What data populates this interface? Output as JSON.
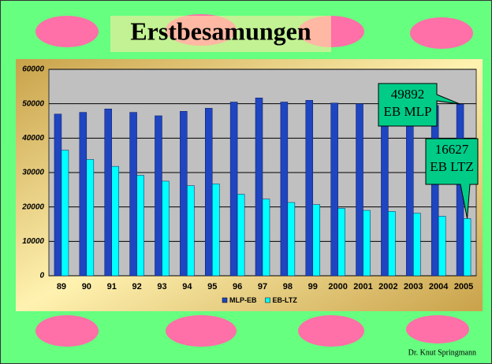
{
  "chart_data": {
    "type": "bar",
    "title": "Erstbesamungen",
    "categories": [
      "89",
      "90",
      "91",
      "92",
      "93",
      "94",
      "95",
      "96",
      "97",
      "98",
      "99",
      "2000",
      "2001",
      "2002",
      "2003",
      "2004",
      "2005"
    ],
    "series": [
      {
        "name": "MLP-EB",
        "color": "#1f45c0",
        "values": [
          47000,
          47500,
          48500,
          47500,
          46500,
          47800,
          48700,
          50500,
          51700,
          50500,
          51000,
          50200,
          50000,
          49700,
          49600,
          49500,
          49892
        ]
      },
      {
        "name": "EB-LTZ",
        "color": "#00ffff",
        "values": [
          36500,
          33800,
          31800,
          29200,
          27500,
          26200,
          26700,
          23700,
          22300,
          21300,
          20700,
          19600,
          19000,
          18700,
          18200,
          17300,
          16627
        ]
      }
    ],
    "ylim": [
      0,
      60000
    ],
    "yticks": [
      0,
      10000,
      20000,
      30000,
      40000,
      50000,
      60000
    ],
    "grid": true,
    "annotations": [
      {
        "lines": [
          "49892",
          "EB MLP"
        ]
      },
      {
        "lines": [
          "16627",
          "EB LTZ"
        ]
      }
    ],
    "footer": "Dr. Knut Springmann"
  }
}
